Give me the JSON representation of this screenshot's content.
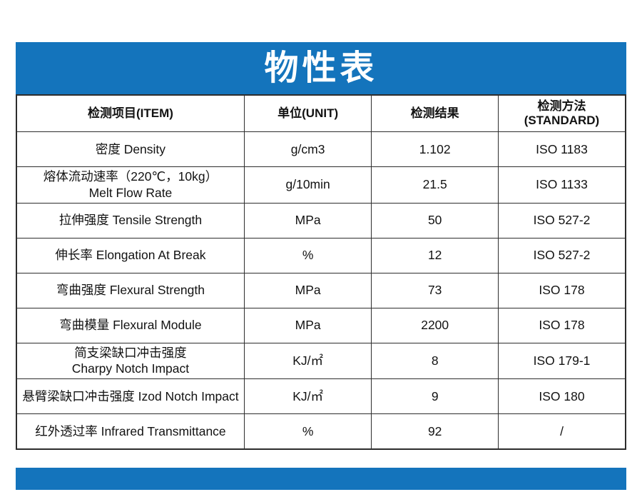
{
  "title": "物性表",
  "colors": {
    "accent_blue": "#1474BC",
    "border": "#2d2d2d",
    "text": "#121212"
  },
  "table": {
    "headers": [
      "检测项目(ITEM)",
      "单位(UNIT)",
      "检测结果",
      "检测方法\n(STANDARD)"
    ],
    "rows": [
      {
        "item": "密度 Density",
        "unit": "g/cm3",
        "result": "1.102",
        "standard": "ISO 1183"
      },
      {
        "item": "熔体流动速率（220℃，10kg）\nMelt Flow  Rate",
        "unit": "g/10min",
        "result": "21.5",
        "standard": "ISO 1133"
      },
      {
        "item": "拉伸强度  Tensile Strength",
        "unit": "MPa",
        "result": "50",
        "standard": "ISO 527-2"
      },
      {
        "item": "伸长率  Elongation At Break",
        "unit": "%",
        "result": "12",
        "standard": "ISO 527-2"
      },
      {
        "item": "弯曲强度  Flexural Strength",
        "unit": "MPa",
        "result": "73",
        "standard": "ISO 178"
      },
      {
        "item": "弯曲模量  Flexural Module",
        "unit": "MPa",
        "result": "2200",
        "standard": "ISO 178"
      },
      {
        "item": "简支梁缺口冲击强度\nCharpy Notch Impact",
        "unit": "KJ/㎡",
        "result": "8",
        "standard": "ISO 179-1"
      },
      {
        "item": "悬臂梁缺口冲击强度 Izod Notch Impact",
        "unit": "KJ/㎡",
        "result": "9",
        "standard": "ISO 180"
      },
      {
        "item": "红外透过率  Infrared Transmittance",
        "unit": "%",
        "result": "92",
        "standard": "/"
      }
    ]
  }
}
